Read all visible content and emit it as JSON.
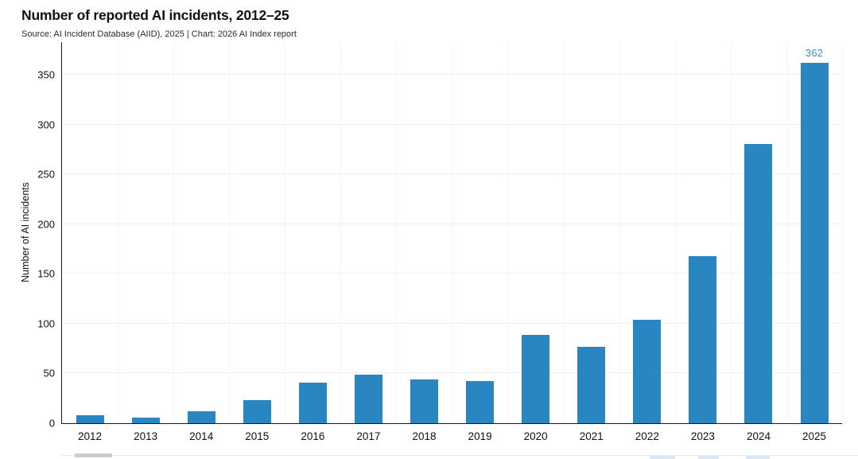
{
  "header": {
    "title": "Number of reported AI incidents, 2012–25",
    "source": "Source: AI Incident Database (AIID), 2025 | Chart: 2026 AI Index report"
  },
  "colors": {
    "bar": "#2A86C1",
    "annotation": "#3E8CC6",
    "axis": "#1a1a1a",
    "grid": "#f0f0f0"
  },
  "chart_data": {
    "type": "bar",
    "title": "Number of reported AI incidents, 2012–25",
    "subtitle": "Source: AI Incident Database (AIID), 2025 | Chart: 2026 AI Index report",
    "xlabel": "",
    "ylabel": "Number of AI incidents",
    "categories": [
      "2012",
      "2013",
      "2014",
      "2015",
      "2016",
      "2017",
      "2018",
      "2019",
      "2020",
      "2021",
      "2022",
      "2023",
      "2024",
      "2025"
    ],
    "values": [
      8,
      6,
      12,
      23,
      41,
      49,
      44,
      42,
      89,
      77,
      104,
      168,
      281,
      362
    ],
    "ylim": [
      0,
      383
    ],
    "yticks": [
      0,
      50,
      100,
      150,
      200,
      250,
      300,
      350
    ],
    "grid": true,
    "legend": "none",
    "bar_color": "#2A86C1",
    "annotation": {
      "index": 13,
      "text": "362",
      "color": "#3E8CC6"
    }
  }
}
